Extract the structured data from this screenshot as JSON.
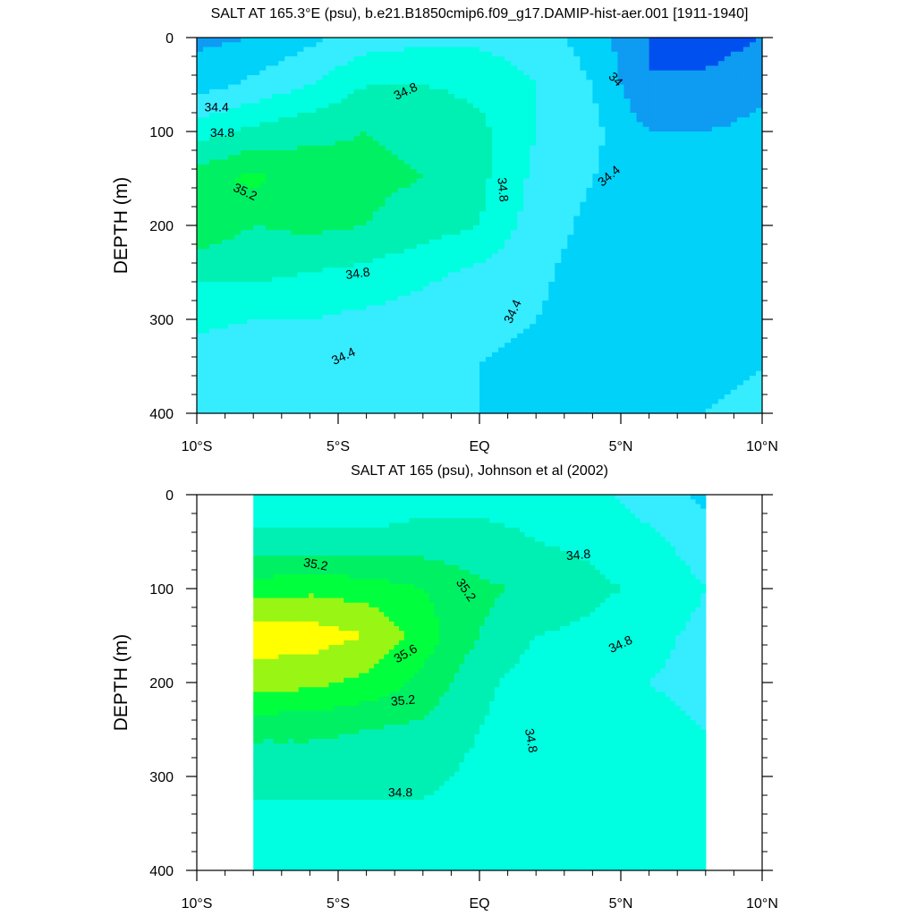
{
  "panels": [
    {
      "id": "model",
      "title": "SALT AT 165.3°E (psu), b.e21.B1850cmip6.f09_g17.DAMIP-hist-aer.001 [1911-1940]",
      "ylabel": "DEPTH (m)",
      "yticks": [
        "0",
        "100",
        "200",
        "300",
        "400"
      ],
      "xticks": [
        "10°S",
        "5°S",
        "EQ",
        "5°N",
        "10°N"
      ],
      "contour_labels": [
        {
          "text": "34.4",
          "x": -9.3,
          "y": 75,
          "rot": 0
        },
        {
          "text": "34.8",
          "x": -9.1,
          "y": 102,
          "rot": 0
        },
        {
          "text": "34.8",
          "x": -2.6,
          "y": 58,
          "rot": -25
        },
        {
          "text": "34",
          "x": 4.8,
          "y": 45,
          "rot": 45
        },
        {
          "text": "35.2",
          "x": -8.3,
          "y": 165,
          "rot": 25
        },
        {
          "text": "34.8",
          "x": 0.8,
          "y": 162,
          "rot": 85
        },
        {
          "text": "34.4",
          "x": 4.6,
          "y": 148,
          "rot": -40
        },
        {
          "text": "34.8",
          "x": -4.3,
          "y": 252,
          "rot": -8
        },
        {
          "text": "34.4",
          "x": 1.2,
          "y": 292,
          "rot": -65
        },
        {
          "text": "34.4",
          "x": -4.8,
          "y": 340,
          "rot": -25
        }
      ]
    },
    {
      "id": "obs",
      "title": "SALT AT 165 (psu), Johnson et al (2002)",
      "ylabel": "DEPTH (m)",
      "yticks": [
        "0",
        "100",
        "200",
        "300",
        "400"
      ],
      "xticks": [
        "10°S",
        "5°S",
        "EQ",
        "5°N",
        "10°N"
      ],
      "contour_labels": [
        {
          "text": "35.2",
          "x": -5.8,
          "y": 75,
          "rot": 10
        },
        {
          "text": "35.2",
          "x": -0.5,
          "y": 102,
          "rot": 55
        },
        {
          "text": "34.8",
          "x": 3.5,
          "y": 65,
          "rot": -5
        },
        {
          "text": "35.6",
          "x": -2.6,
          "y": 170,
          "rot": -30
        },
        {
          "text": "34.8",
          "x": 5.0,
          "y": 160,
          "rot": -25
        },
        {
          "text": "35.2",
          "x": -2.7,
          "y": 220,
          "rot": -5
        },
        {
          "text": "34.8",
          "x": 1.8,
          "y": 262,
          "rot": 80
        },
        {
          "text": "34.8",
          "x": -2.8,
          "y": 318,
          "rot": 0
        }
      ]
    }
  ],
  "chart_data": [
    {
      "type": "heatmap",
      "title": "SALT AT 165.3°E (psu), b.e21.B1850cmip6.f09_g17.DAMIP-hist-aer.001 [1911-1940]",
      "xlabel": "",
      "ylabel": "DEPTH (m)",
      "xlim": [
        -10,
        10
      ],
      "ylim": [
        400,
        0
      ],
      "x": [
        -10,
        -8,
        -6,
        -4,
        -2,
        0,
        2,
        4,
        6,
        8,
        10
      ],
      "y": [
        0,
        50,
        100,
        150,
        200,
        250,
        300,
        350,
        400
      ],
      "z": [
        [
          34.15,
          34.2,
          34.35,
          34.5,
          34.55,
          34.55,
          34.5,
          34.3,
          34.0,
          33.9,
          34.0
        ],
        [
          34.3,
          34.45,
          34.6,
          34.8,
          34.8,
          34.75,
          34.6,
          34.4,
          34.0,
          34.05,
          34.15
        ],
        [
          34.7,
          34.85,
          34.95,
          35.0,
          34.95,
          34.85,
          34.6,
          34.45,
          34.2,
          34.2,
          34.25
        ],
        [
          35.1,
          35.25,
          35.1,
          35.05,
          35.0,
          34.85,
          34.55,
          34.4,
          34.3,
          34.3,
          34.3
        ],
        [
          35.15,
          35.0,
          35.05,
          35.0,
          34.9,
          34.8,
          34.5,
          34.35,
          34.25,
          34.25,
          34.3
        ],
        [
          34.85,
          34.85,
          34.8,
          34.75,
          34.65,
          34.55,
          34.45,
          34.3,
          34.25,
          34.25,
          34.3
        ],
        [
          34.65,
          34.6,
          34.6,
          34.55,
          34.5,
          34.45,
          34.4,
          34.3,
          34.25,
          34.3,
          34.35
        ],
        [
          34.5,
          34.45,
          34.45,
          34.45,
          34.45,
          34.4,
          34.35,
          34.3,
          34.25,
          34.35,
          34.4
        ],
        [
          34.4,
          34.4,
          34.4,
          34.4,
          34.4,
          34.4,
          34.35,
          34.35,
          34.35,
          34.4,
          34.45
        ]
      ],
      "levels": [
        34.0,
        34.2,
        34.4,
        34.6,
        34.8,
        35.0,
        35.2,
        35.4,
        35.6
      ],
      "colors": [
        "#0050f0",
        "#0e9bf2",
        "#00d2fa",
        "#36ecff",
        "#00ffe0",
        "#00f0b4",
        "#00f064",
        "#00ff3c",
        "#99f514",
        "#ffff00",
        "#ffdc1e"
      ]
    },
    {
      "type": "heatmap",
      "title": "SALT AT 165 (psu), Johnson et al (2002)",
      "xlabel": "",
      "ylabel": "DEPTH (m)",
      "xlim": [
        -10,
        10
      ],
      "ylim": [
        400,
        0
      ],
      "x": [
        -8,
        -6,
        -4,
        -2,
        0,
        2,
        4,
        6,
        8
      ],
      "y": [
        0,
        50,
        100,
        150,
        200,
        250,
        300,
        350,
        400
      ],
      "z": [
        [
          34.7,
          34.65,
          34.65,
          34.7,
          34.75,
          34.75,
          34.65,
          34.5,
          34.35
        ],
        [
          34.85,
          34.85,
          34.85,
          34.9,
          34.85,
          34.8,
          34.75,
          34.65,
          34.5
        ],
        [
          35.3,
          35.35,
          35.3,
          35.2,
          35.05,
          34.95,
          34.85,
          34.75,
          34.6
        ],
        [
          35.7,
          35.7,
          35.6,
          35.3,
          35.0,
          34.8,
          34.75,
          34.65,
          34.55
        ],
        [
          35.5,
          35.45,
          35.35,
          35.15,
          34.85,
          34.7,
          34.65,
          34.6,
          34.55
        ],
        [
          35.05,
          35.05,
          35.0,
          34.95,
          34.8,
          34.7,
          34.65,
          34.65,
          34.6
        ],
        [
          34.85,
          34.85,
          34.85,
          34.85,
          34.75,
          34.7,
          34.7,
          34.7,
          34.65
        ],
        [
          34.75,
          34.75,
          34.75,
          34.75,
          34.7,
          34.7,
          34.7,
          34.7,
          34.7
        ],
        [
          34.7,
          34.7,
          34.7,
          34.7,
          34.7,
          34.7,
          34.7,
          34.7,
          34.7
        ]
      ],
      "levels": [
        34.0,
        34.2,
        34.4,
        34.6,
        34.8,
        35.0,
        35.2,
        35.4,
        35.6
      ],
      "colors": [
        "#0050f0",
        "#0e9bf2",
        "#00d2fa",
        "#36ecff",
        "#00ffe0",
        "#00f0b4",
        "#00f064",
        "#00ff3c",
        "#99f514",
        "#ffff00",
        "#ffdc1e"
      ]
    }
  ]
}
